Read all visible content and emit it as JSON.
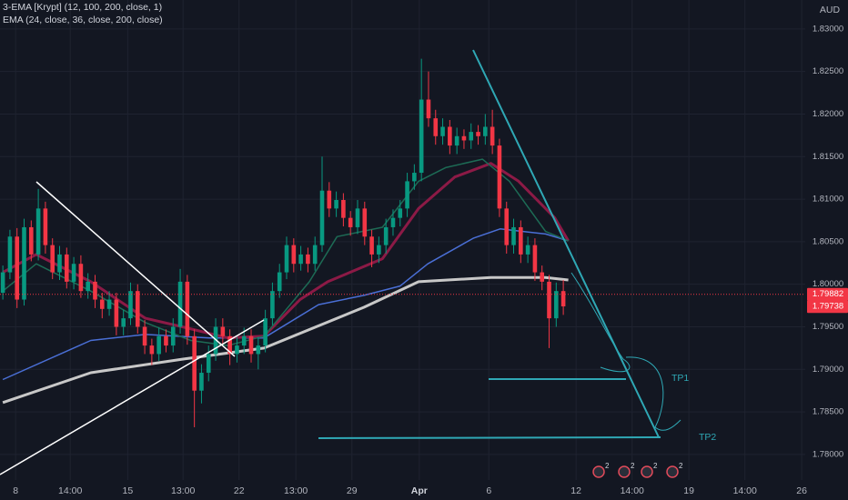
{
  "chart_data": {
    "type": "candlestick",
    "legend": [
      "3-EMA [Krypt] (12, 100, 200, close, 1)",
      "EMA (24, close, 36, close, 200, close)"
    ],
    "currency": "AUD",
    "up_color": "#089981",
    "down_color": "#f23645",
    "grid": true,
    "open": [
      1.799,
      1.8014,
      1.8056,
      1.7982,
      1.8067,
      1.8035,
      1.8089,
      1.8046,
      1.8014,
      1.8035,
      1.8003,
      1.8024,
      1.7992,
      1.8003,
      1.7982,
      1.7971,
      1.7982,
      1.795,
      1.796,
      1.7992,
      1.795,
      1.7928,
      1.7918,
      1.7939,
      1.7928,
      1.795,
      1.8003,
      1.7939,
      1.7875,
      1.7896,
      1.7918,
      1.795,
      1.7939,
      1.7918,
      1.7928,
      1.7939,
      1.7918,
      1.7928,
      1.796,
      1.7992,
      1.8014,
      1.8046,
      1.8024,
      1.8035,
      1.8024,
      1.8046,
      1.811,
      1.8089,
      1.8099,
      1.8078,
      1.8067,
      1.8089,
      1.8056,
      1.8035,
      1.8046,
      1.8067,
      1.8078,
      1.8089,
      1.8121,
      1.8131,
      1.8217,
      1.8195,
      1.8174,
      1.8185,
      1.8163,
      1.8174,
      1.8169,
      1.8179,
      1.8174,
      1.8185,
      1.8163,
      1.8089,
      1.8046,
      1.8067,
      1.8035,
      1.8046,
      1.8014,
      1.8003,
      1.796,
      1.7992
    ],
    "high": [
      1.8022,
      1.8064,
      1.8066,
      1.8077,
      1.8075,
      1.8112,
      1.8097,
      1.8054,
      1.8045,
      1.8043,
      1.8032,
      1.8034,
      1.8013,
      1.8011,
      1.799,
      1.7992,
      1.799,
      1.797,
      1.8002,
      1.8,
      1.7958,
      1.7936,
      1.7949,
      1.7947,
      1.796,
      1.8018,
      1.8011,
      1.7947,
      1.7906,
      1.7928,
      1.796,
      1.796,
      1.7947,
      1.7938,
      1.7949,
      1.7947,
      1.7938,
      1.797,
      1.8002,
      1.8024,
      1.8056,
      1.8054,
      1.8045,
      1.8043,
      1.8056,
      1.815,
      1.812,
      1.8109,
      1.8107,
      1.8086,
      1.8099,
      1.8097,
      1.8064,
      1.8056,
      1.8077,
      1.8088,
      1.8099,
      1.8131,
      1.8141,
      1.8265,
      1.825,
      1.8205,
      1.8195,
      1.8193,
      1.8184,
      1.8182,
      1.8189,
      1.8187,
      1.82,
      1.8205,
      1.8171,
      1.8097,
      1.8077,
      1.8075,
      1.8056,
      1.8054,
      1.8022,
      1.8011,
      1.8002,
      1.8005
    ],
    "low": [
      1.7982,
      1.8006,
      1.7972,
      1.7975,
      1.8027,
      1.8028,
      1.8036,
      1.8006,
      1.8005,
      1.7995,
      1.7994,
      1.7984,
      1.7983,
      1.7972,
      1.796,
      1.7963,
      1.794,
      1.794,
      1.7952,
      1.7942,
      1.7918,
      1.7905,
      1.791,
      1.792,
      1.792,
      1.7942,
      1.7929,
      1.7832,
      1.786,
      1.7886,
      1.791,
      1.7929,
      1.7905,
      1.7908,
      1.7918,
      1.7908,
      1.79,
      1.792,
      1.7952,
      1.7984,
      1.8006,
      1.8014,
      1.8016,
      1.8014,
      1.8016,
      1.8038,
      1.8079,
      1.8079,
      1.8068,
      1.8057,
      1.8059,
      1.8046,
      1.802,
      1.8025,
      1.8036,
      1.8057,
      1.8068,
      1.8079,
      1.8111,
      1.8121,
      1.8185,
      1.8164,
      1.8164,
      1.8153,
      1.8153,
      1.8159,
      1.8159,
      1.8164,
      1.8164,
      1.8153,
      1.8079,
      1.8036,
      1.8036,
      1.8025,
      1.8025,
      1.8004,
      1.7993,
      1.7925,
      1.795,
      1.7964
    ],
    "close": [
      1.8014,
      1.8056,
      1.7982,
      1.8067,
      1.8035,
      1.8089,
      1.8046,
      1.8014,
      1.8035,
      1.8003,
      1.8024,
      1.7992,
      1.8003,
      1.7982,
      1.7971,
      1.7982,
      1.795,
      1.796,
      1.7992,
      1.795,
      1.7928,
      1.7918,
      1.7939,
      1.7928,
      1.795,
      1.8003,
      1.7939,
      1.7875,
      1.7896,
      1.7918,
      1.795,
      1.7939,
      1.7918,
      1.7928,
      1.7939,
      1.7918,
      1.7928,
      1.796,
      1.7992,
      1.8014,
      1.8046,
      1.8024,
      1.8035,
      1.8024,
      1.8046,
      1.811,
      1.8089,
      1.8099,
      1.8078,
      1.8067,
      1.8089,
      1.8056,
      1.8035,
      1.8046,
      1.8067,
      1.8078,
      1.8089,
      1.8121,
      1.8131,
      1.8217,
      1.8195,
      1.8174,
      1.8185,
      1.8163,
      1.8174,
      1.8169,
      1.8179,
      1.8174,
      1.8185,
      1.8163,
      1.8089,
      1.8046,
      1.8067,
      1.8035,
      1.8046,
      1.8014,
      1.8003,
      1.796,
      1.7992,
      1.7974
    ],
    "ema": [
      {
        "color": "#c8c8c8",
        "width": 3,
        "x": [
          0,
          12.4,
          25.3,
          36.8,
          50.9,
          58.6,
          68.8,
          76.5,
          79.7
        ],
        "values": [
          1.7861,
          1.7896,
          1.7912,
          1.7925,
          1.7973,
          1.8003,
          1.8008,
          1.8008,
          1.8005
        ]
      },
      {
        "color": "#4a6fd6",
        "width": 1.5,
        "x": [
          0,
          12.4,
          20.1,
          29.1,
          36.8,
          44.5,
          50.9,
          56.0,
          59.9,
          66.3,
          70.1,
          76.5,
          79.7
        ],
        "values": [
          1.7888,
          1.7934,
          1.7941,
          1.7937,
          1.7937,
          1.7976,
          1.7987,
          1.7998,
          1.8024,
          1.8054,
          1.8065,
          1.8059,
          1.8051
        ]
      },
      {
        "color": "#8c1a46",
        "width": 3,
        "x": [
          0,
          4.7,
          12.4,
          20.1,
          25.3,
          31.7,
          36.8,
          41.9,
          45.8,
          53.5,
          58.6,
          63.7,
          68.8,
          72.7,
          77.8,
          79.7
        ],
        "values": [
          1.8014,
          1.8035,
          1.8003,
          1.796,
          1.795,
          1.7937,
          1.7939,
          1.7982,
          1.8003,
          1.803,
          1.8089,
          1.8126,
          1.8142,
          1.8121,
          1.8078,
          1.8051
        ]
      },
      {
        "color": "#1d6b55",
        "width": 1.5,
        "x": [
          0,
          4.7,
          12.4,
          20.1,
          26.5,
          31.7,
          36.8,
          43.2,
          47.1,
          53.5,
          58.6,
          62.4,
          67.6,
          71.4,
          76.5,
          79.7
        ],
        "values": [
          1.7992,
          1.8024,
          1.7992,
          1.7955,
          1.7934,
          1.7928,
          1.7939,
          1.8003,
          1.8056,
          1.8067,
          1.8121,
          1.8137,
          1.8147,
          1.8121,
          1.8062,
          1.8051
        ]
      }
    ],
    "xlim": [
      -0.4,
      113.1
    ],
    "ylim": [
      1.777,
      1.8334
    ],
    "xticks": [
      {
        "value": 1.8,
        "label": "8"
      },
      {
        "value": 9.5,
        "label": "14:00"
      },
      {
        "value": 17.6,
        "label": "15"
      },
      {
        "value": 25.4,
        "label": "13:00"
      },
      {
        "value": 33.3,
        "label": "22"
      },
      {
        "value": 41.3,
        "label": "13:00"
      },
      {
        "value": 49.2,
        "label": "29"
      },
      {
        "value": 58.7,
        "label": "Apr"
      },
      {
        "value": 68.5,
        "label": "6"
      },
      {
        "value": 80.8,
        "label": "12"
      },
      {
        "value": 88.7,
        "label": "14:00"
      },
      {
        "value": 96.7,
        "label": "19"
      },
      {
        "value": 104.6,
        "label": "14:00"
      },
      {
        "value": 112.6,
        "label": "26"
      }
    ],
    "yticks": [
      {
        "value": 1.78,
        "label": "1.78000"
      },
      {
        "value": 1.785,
        "label": "1.78500"
      },
      {
        "value": 1.79,
        "label": "1.79000"
      },
      {
        "value": 1.795,
        "label": "1.79500"
      },
      {
        "value": 1.8,
        "label": "1.80000"
      },
      {
        "value": 1.805,
        "label": "1.80500"
      },
      {
        "value": 1.81,
        "label": "1.81000"
      },
      {
        "value": 1.815,
        "label": "1.81500"
      },
      {
        "value": 1.82,
        "label": "1.82000"
      },
      {
        "value": 1.825,
        "label": "1.82500"
      },
      {
        "value": 1.83,
        "label": "1.83000"
      }
    ],
    "price_tags": [
      1.79882,
      1.79738
    ],
    "annotations": [
      "TP1",
      "TP2"
    ],
    "event_counts": [
      2,
      2,
      2,
      2
    ]
  }
}
